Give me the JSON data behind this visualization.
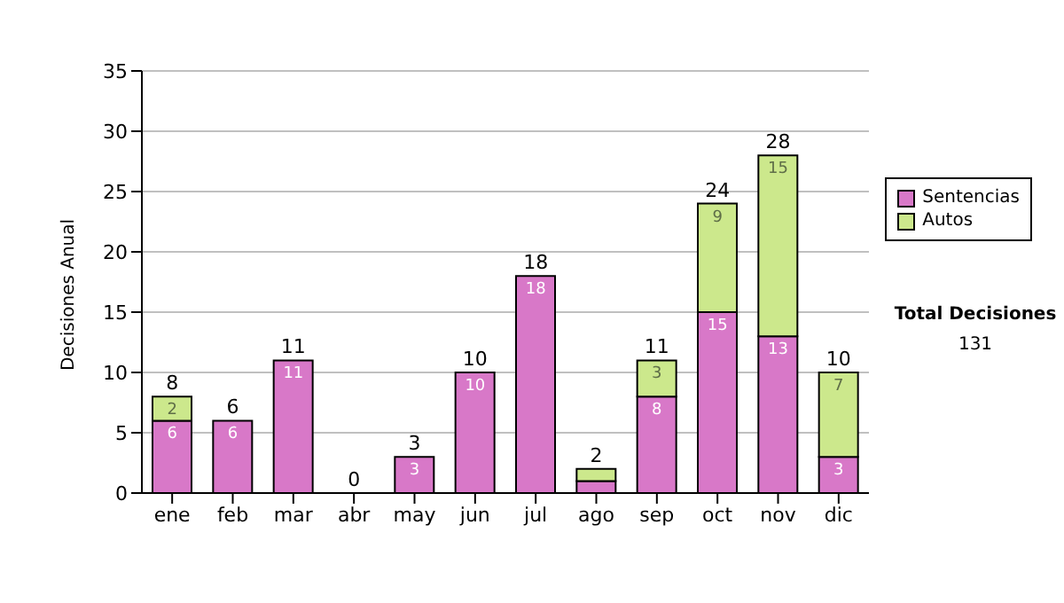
{
  "chart_data": {
    "type": "bar",
    "ylabel": "Decisiones Anual",
    "categories": [
      "ene",
      "feb",
      "mar",
      "abr",
      "may",
      "jun",
      "jul",
      "ago",
      "sep",
      "oct",
      "nov",
      "dic"
    ],
    "series": [
      {
        "name": "Sentencias",
        "color": "#d878c8",
        "values": [
          6,
          6,
          11,
          0,
          3,
          10,
          18,
          1,
          8,
          15,
          13,
          3
        ],
        "value_labels": [
          "6",
          "6",
          "11",
          null,
          "3",
          "10",
          "18",
          null,
          "8",
          "15",
          "13",
          "3"
        ]
      },
      {
        "name": "Autos",
        "color": "#cce88c",
        "values": [
          2,
          0,
          0,
          0,
          0,
          0,
          0,
          1,
          3,
          9,
          15,
          7
        ],
        "value_labels": [
          "2",
          null,
          null,
          null,
          null,
          null,
          null,
          null,
          "3",
          "9",
          "15",
          "7"
        ]
      }
    ],
    "stacked": true,
    "ylim": [
      0,
      35
    ],
    "yticks": [
      0,
      5,
      10,
      15,
      20,
      25,
      30,
      35
    ],
    "grid": "y",
    "legend": "right",
    "totals": [
      "8",
      "6",
      "11",
      "0",
      "3",
      "10",
      "18",
      "2",
      "11",
      "24",
      "28",
      "10"
    ],
    "annotations": [
      "Total Decisiones",
      "131"
    ]
  }
}
